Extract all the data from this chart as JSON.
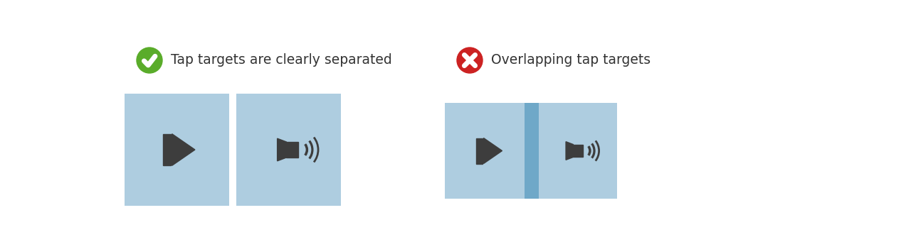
{
  "bg_color": "#ffffff",
  "fig_width": 12.8,
  "fig_height": 3.34,
  "label_good": "Tap targets are clearly separated",
  "label_bad": "Overlapping tap targets",
  "good_icon_color": "#5aac2a",
  "bad_icon_color": "#cc2222",
  "box_color": "#aecde0",
  "overlap_color": "#6fa8c8",
  "icon_color": "#3d3d3d",
  "text_color": "#333333",
  "label_fontsize": 13.5
}
